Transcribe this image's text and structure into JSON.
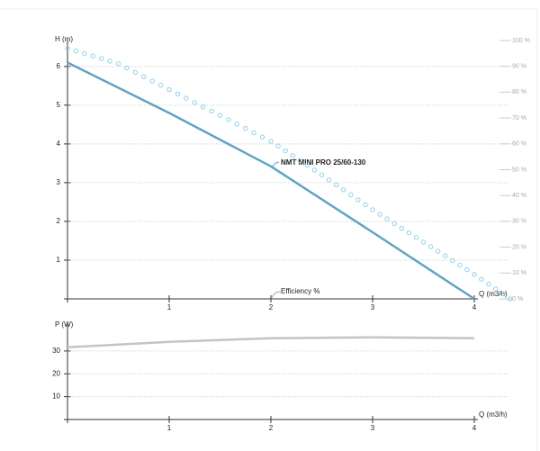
{
  "chart_data": [
    {
      "type": "line",
      "y_label": "H (m)",
      "x_label": "Q (m3/h)",
      "xlim": [
        0,
        4
      ],
      "xticks": [
        1,
        2,
        3,
        4
      ],
      "ylim": [
        0,
        6.67
      ],
      "yticks": [
        1,
        2,
        3,
        4,
        5,
        6
      ],
      "y2lim": [
        0,
        100
      ],
      "y2ticks": [
        {
          "value": 0,
          "label": "0 %"
        },
        {
          "value": 10,
          "label": "10 %"
        },
        {
          "value": 20,
          "label": "20 %"
        },
        {
          "value": 30,
          "label": "30 %"
        },
        {
          "value": 40,
          "label": "40 %"
        },
        {
          "value": 50,
          "label": "50 %"
        },
        {
          "value": 60,
          "label": "60 %"
        },
        {
          "value": 70,
          "label": "70 %"
        },
        {
          "value": 80,
          "label": "80 %"
        },
        {
          "value": 90,
          "label": "90 %"
        },
        {
          "value": 100,
          "label": "100 %"
        }
      ],
      "grid": true,
      "series": [
        {
          "name": "NMT MINI PRO 25/60-130",
          "color": "#5fa4c4",
          "style": "solid",
          "x": [
            0,
            1,
            2,
            3,
            4
          ],
          "values": [
            6.1,
            4.8,
            3.42,
            1.72,
            0
          ]
        },
        {
          "name": "Efficiency %",
          "color": "#8fd0ec",
          "style": "dots",
          "axis": "y2",
          "x": [
            0,
            0.5,
            1,
            1.5,
            2,
            2.5,
            3,
            3.5,
            4,
            4.35
          ],
          "values": [
            97,
            91,
            81,
            71,
            61,
            48,
            34.5,
            22,
            9.5,
            0
          ]
        }
      ]
    },
    {
      "type": "line",
      "y_label": "P (W)",
      "x_label": "Q (m3/h)",
      "xlim": [
        0,
        4
      ],
      "xticks": [
        1,
        2,
        3,
        4
      ],
      "ylim": [
        0,
        41
      ],
      "yticks": [
        10,
        20,
        30
      ],
      "grid": true,
      "series": [
        {
          "color": "#c4c4c4",
          "style": "solid",
          "x": [
            0,
            1,
            2,
            3,
            4
          ],
          "values": [
            31.6,
            34,
            35.6,
            36,
            35.6
          ]
        }
      ]
    }
  ]
}
